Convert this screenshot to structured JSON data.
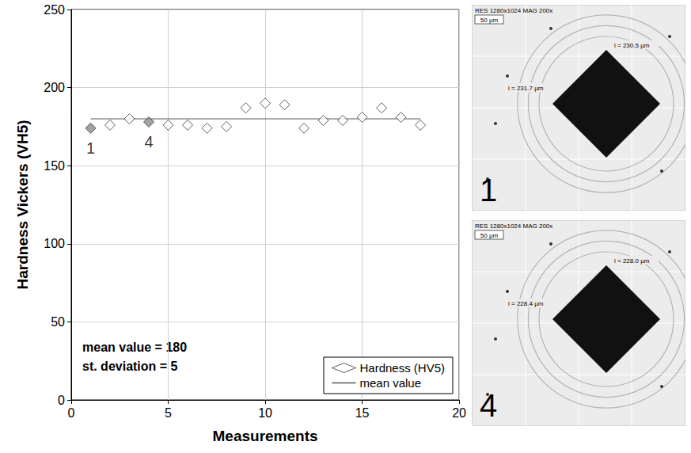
{
  "chart_data": {
    "type": "scatter",
    "x_label": "Measurements",
    "y_label": "Hardness Vickers (VH5)",
    "xlim": [
      0,
      20
    ],
    "xticks": [
      0,
      5,
      10,
      15,
      20
    ],
    "ylim": [
      0,
      250
    ],
    "yticks": [
      0,
      50,
      100,
      150,
      200,
      250
    ],
    "grid": true,
    "legend": "lower right",
    "series": [
      {
        "name": "Hardness (HV5)",
        "type": "scatter",
        "marker": "diamond",
        "color": "#ffffff",
        "x": [
          1,
          2,
          3,
          4,
          5,
          6,
          7,
          8,
          9,
          10,
          11,
          12,
          13,
          14,
          15,
          16,
          17,
          18
        ],
        "values": [
          174,
          176,
          180,
          178,
          176,
          176,
          174,
          175,
          187,
          190,
          189,
          174,
          179,
          179,
          181,
          187,
          181,
          176
        ],
        "colors": [
          "#8c8c8c",
          "#ffffff",
          "#ffffff",
          "#8c8c8c",
          "#ffffff",
          "#ffffff",
          "#ffffff",
          "#ffffff",
          "#ffffff",
          "#ffffff",
          "#ffffff",
          "#ffffff",
          "#ffffff",
          "#ffffff",
          "#ffffff",
          "#ffffff",
          "#ffffff",
          "#ffffff"
        ]
      },
      {
        "name": "mean value",
        "type": "line",
        "line_style": "solid",
        "color": "#555555",
        "x": [
          1,
          18
        ],
        "values": [
          180,
          180
        ]
      }
    ],
    "point_labels": [
      {
        "x": 1,
        "label": "1"
      },
      {
        "x": 4,
        "label": "4"
      }
    ],
    "annotations": [
      "mean value = 180",
      "st. deviation = 5"
    ]
  },
  "images": [
    {
      "label": "1",
      "header": "RES 1280x1024 MAG 200x",
      "scale": "50 µm",
      "measurements": [
        "l = 230.5 µm",
        "l = 231.7 µm"
      ]
    },
    {
      "label": "4",
      "header": "RES 1280x1024 MAG 200x",
      "scale": "50 µm",
      "measurements": [
        "l = 228.0 µm",
        "l = 228.4 µm"
      ]
    }
  ]
}
